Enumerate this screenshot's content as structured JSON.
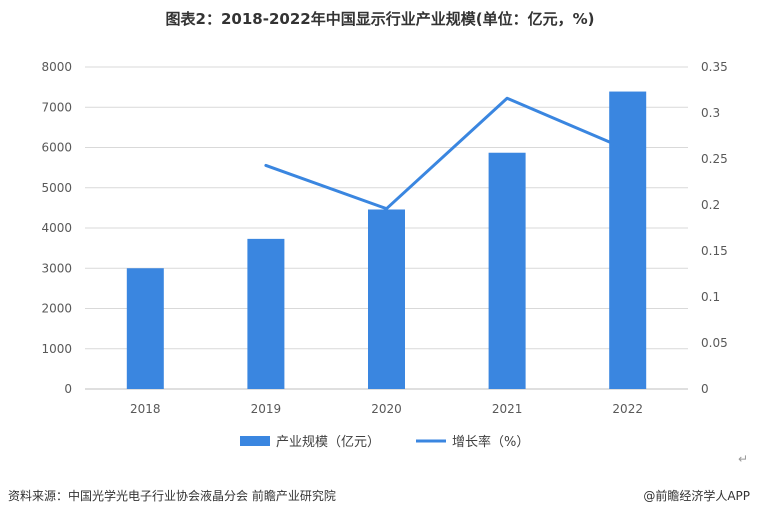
{
  "chart_data": {
    "type": "bar+line",
    "title": "图表2：2018-2022年中国显示行业产业规模(单位：亿元，%)",
    "categories": [
      "2018",
      "2019",
      "2020",
      "2021",
      "2022"
    ],
    "series": [
      {
        "name": "产业规模（亿元）",
        "type": "bar",
        "axis": "left",
        "color": "#3A86E0",
        "values": [
          3000,
          3730,
          4460,
          5870,
          7390
        ]
      },
      {
        "name": "增长率（%）",
        "type": "line",
        "axis": "right",
        "color": "#3A86E0",
        "values": [
          null,
          0.243,
          0.196,
          0.316,
          0.26
        ]
      }
    ],
    "y_left": {
      "ylim": [
        0,
        8000
      ],
      "ticks": [
        "0",
        "1000",
        "2000",
        "3000",
        "4000",
        "5000",
        "6000",
        "7000",
        "8000"
      ]
    },
    "y_right": {
      "ylim": [
        0,
        0.35
      ],
      "ticks": [
        "0",
        "0.05",
        "0.1",
        "0.15",
        "0.2",
        "0.25",
        "0.3",
        "0.35"
      ]
    },
    "grid": true,
    "legend_position": "bottom"
  },
  "footer": {
    "source": "资料来源：中国光学光电子行业协会液晶分会 前瞻产业研究院",
    "copyright": "@前瞻经济学人APP",
    "return_mark": "↵"
  }
}
